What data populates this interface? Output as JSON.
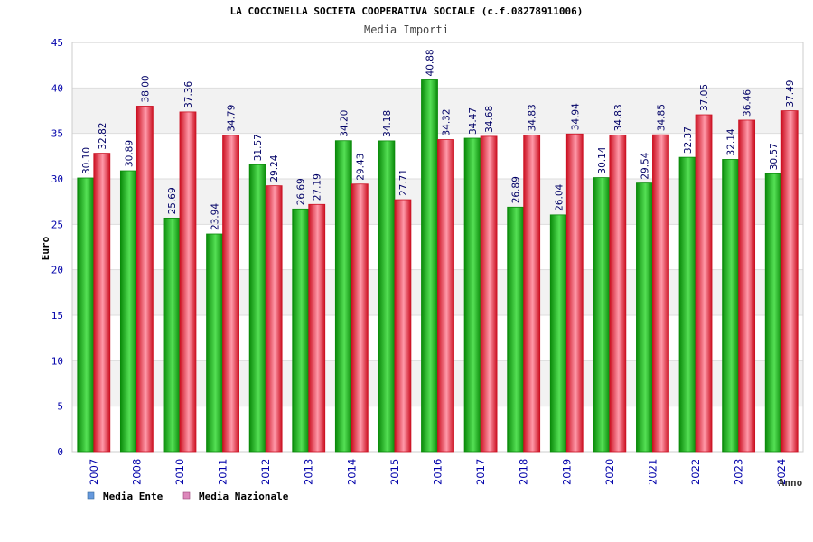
{
  "chart_data": {
    "type": "bar",
    "title": "LA COCCINELLA SOCIETA COOPERATIVA SOCIALE (c.f.08278911006)",
    "subtitle": "Media Importi",
    "xlabel": "Anno",
    "ylabel": "Euro",
    "ylim": [
      0,
      45
    ],
    "ytick_step": 5,
    "categories": [
      "2007",
      "2008",
      "2010",
      "2011",
      "2012",
      "2013",
      "2014",
      "2015",
      "2016",
      "2017",
      "2018",
      "2019",
      "2020",
      "2021",
      "2022",
      "2023",
      "2024"
    ],
    "series": [
      {
        "name": "Media Ente",
        "values": [
          30.1,
          30.89,
          25.69,
          23.94,
          31.57,
          26.69,
          34.2,
          34.18,
          40.88,
          34.47,
          26.89,
          26.04,
          30.14,
          29.54,
          32.37,
          32.14,
          30.57
        ],
        "labels": [
          "30.10",
          "30.89",
          "25.69",
          "23.94",
          "31.57",
          "26.69",
          "34.20",
          "34.18",
          "40.88",
          "34.47",
          "26.89",
          "26.04",
          "30.14",
          "29.54",
          "32.37",
          "32.14",
          "30.57"
        ]
      },
      {
        "name": "Media Nazionale",
        "values": [
          32.82,
          38.0,
          37.36,
          34.79,
          29.24,
          27.19,
          29.43,
          27.71,
          34.32,
          34.68,
          34.83,
          34.94,
          34.83,
          34.85,
          37.05,
          36.46,
          37.49
        ],
        "labels": [
          "32.82",
          "38.00",
          "37.36",
          "34.79",
          "29.24",
          "27.19",
          "29.43",
          "27.71",
          "34.32",
          "34.68",
          "34.83",
          "34.94",
          "34.83",
          "34.85",
          "37.05",
          "36.46",
          "37.49"
        ]
      }
    ],
    "legend": [
      {
        "label": "Media Ente",
        "swatch_color": "#6699dd"
      },
      {
        "label": "Media Nazionale",
        "swatch_color": "#dd88bb"
      }
    ],
    "colors": {
      "ente_dark": "#0a8a0a",
      "ente_light": "#66ee66",
      "naz_dark": "#cc1122",
      "naz_light": "#ff9aaa",
      "label_text": "#000066",
      "tick_text": "#0000aa",
      "band": "#f2f2f2",
      "grid": "#dddddd"
    }
  }
}
